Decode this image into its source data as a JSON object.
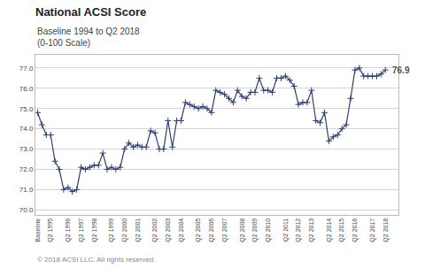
{
  "chart_data": {
    "type": "line",
    "title": "National ACSI Score",
    "subtitle": [
      "Baseline 1994 to Q2 2018",
      "(0-100 Scale)"
    ],
    "annotations": [
      {
        "text": "76.9",
        "x": 80,
        "y": 76.9
      },
      {
        "text": "© 2018 ACSI LLC. All rights reserved."
      }
    ],
    "categories": [
      "Baseline",
      null,
      null,
      "Q2 1995",
      null,
      null,
      null,
      "Q2 1996",
      null,
      null,
      "Q2 1997",
      null,
      null,
      "Q2 1998",
      null,
      null,
      null,
      "Q2 1999",
      null,
      null,
      "Q2 2000",
      null,
      null,
      "Q2 2001",
      null,
      null,
      null,
      "Q2 2002",
      null,
      null,
      "Q2 2003",
      null,
      null,
      "Q2 2004",
      null,
      null,
      null,
      "Q2 2005",
      null,
      null,
      "Q2 2006",
      null,
      null,
      "Q2 2007",
      null,
      null,
      null,
      "Q2 2008",
      null,
      null,
      "Q2 2009",
      null,
      null,
      "Q2 2010",
      null,
      null,
      null,
      "Q2 2011",
      null,
      null,
      "Q2 2012",
      null,
      null,
      "Q2 2013",
      null,
      null,
      null,
      "Q2 2014",
      null,
      null,
      "Q2 2015",
      null,
      null,
      "Q2 2016",
      null,
      null,
      null,
      "Q2 2017",
      null,
      null,
      "Q2 2018"
    ],
    "values": [
      74.8,
      74.2,
      73.7,
      73.7,
      72.4,
      72.0,
      71.0,
      71.1,
      70.9,
      71.0,
      72.1,
      72.0,
      72.1,
      72.2,
      72.2,
      72.8,
      72.0,
      72.1,
      72.0,
      72.1,
      73.0,
      73.3,
      73.1,
      73.2,
      73.1,
      73.1,
      73.9,
      73.8,
      73.0,
      73.0,
      74.4,
      73.1,
      74.4,
      74.4,
      75.3,
      75.2,
      75.1,
      75.0,
      75.1,
      75.0,
      74.8,
      75.9,
      75.8,
      75.7,
      75.5,
      75.3,
      75.9,
      75.6,
      75.5,
      75.8,
      75.8,
      76.5,
      75.9,
      75.9,
      75.8,
      76.5,
      76.5,
      76.6,
      76.4,
      76.1,
      75.2,
      75.3,
      75.3,
      75.9,
      74.4,
      74.3,
      74.8,
      73.4,
      73.6,
      73.7,
      74.0,
      74.2,
      75.5,
      76.9,
      77.0,
      76.6,
      76.6,
      76.6,
      76.6,
      76.7,
      76.9
    ],
    "color": "#2e3f6e",
    "marker": "plus",
    "line_style": "solid",
    "ylim": [
      69.75,
      77.65
    ],
    "yticks": [
      {
        "value": 70,
        "label": "70.0"
      },
      {
        "value": 71,
        "label": "71.0"
      },
      {
        "value": 72,
        "label": "72.0"
      },
      {
        "value": 73,
        "label": "73.0"
      },
      {
        "value": 74,
        "label": "74.0"
      },
      {
        "value": 75,
        "label": "75.0"
      },
      {
        "value": 76,
        "label": "76.0"
      },
      {
        "value": 77,
        "label": "77.0"
      }
    ],
    "grid": true
  }
}
